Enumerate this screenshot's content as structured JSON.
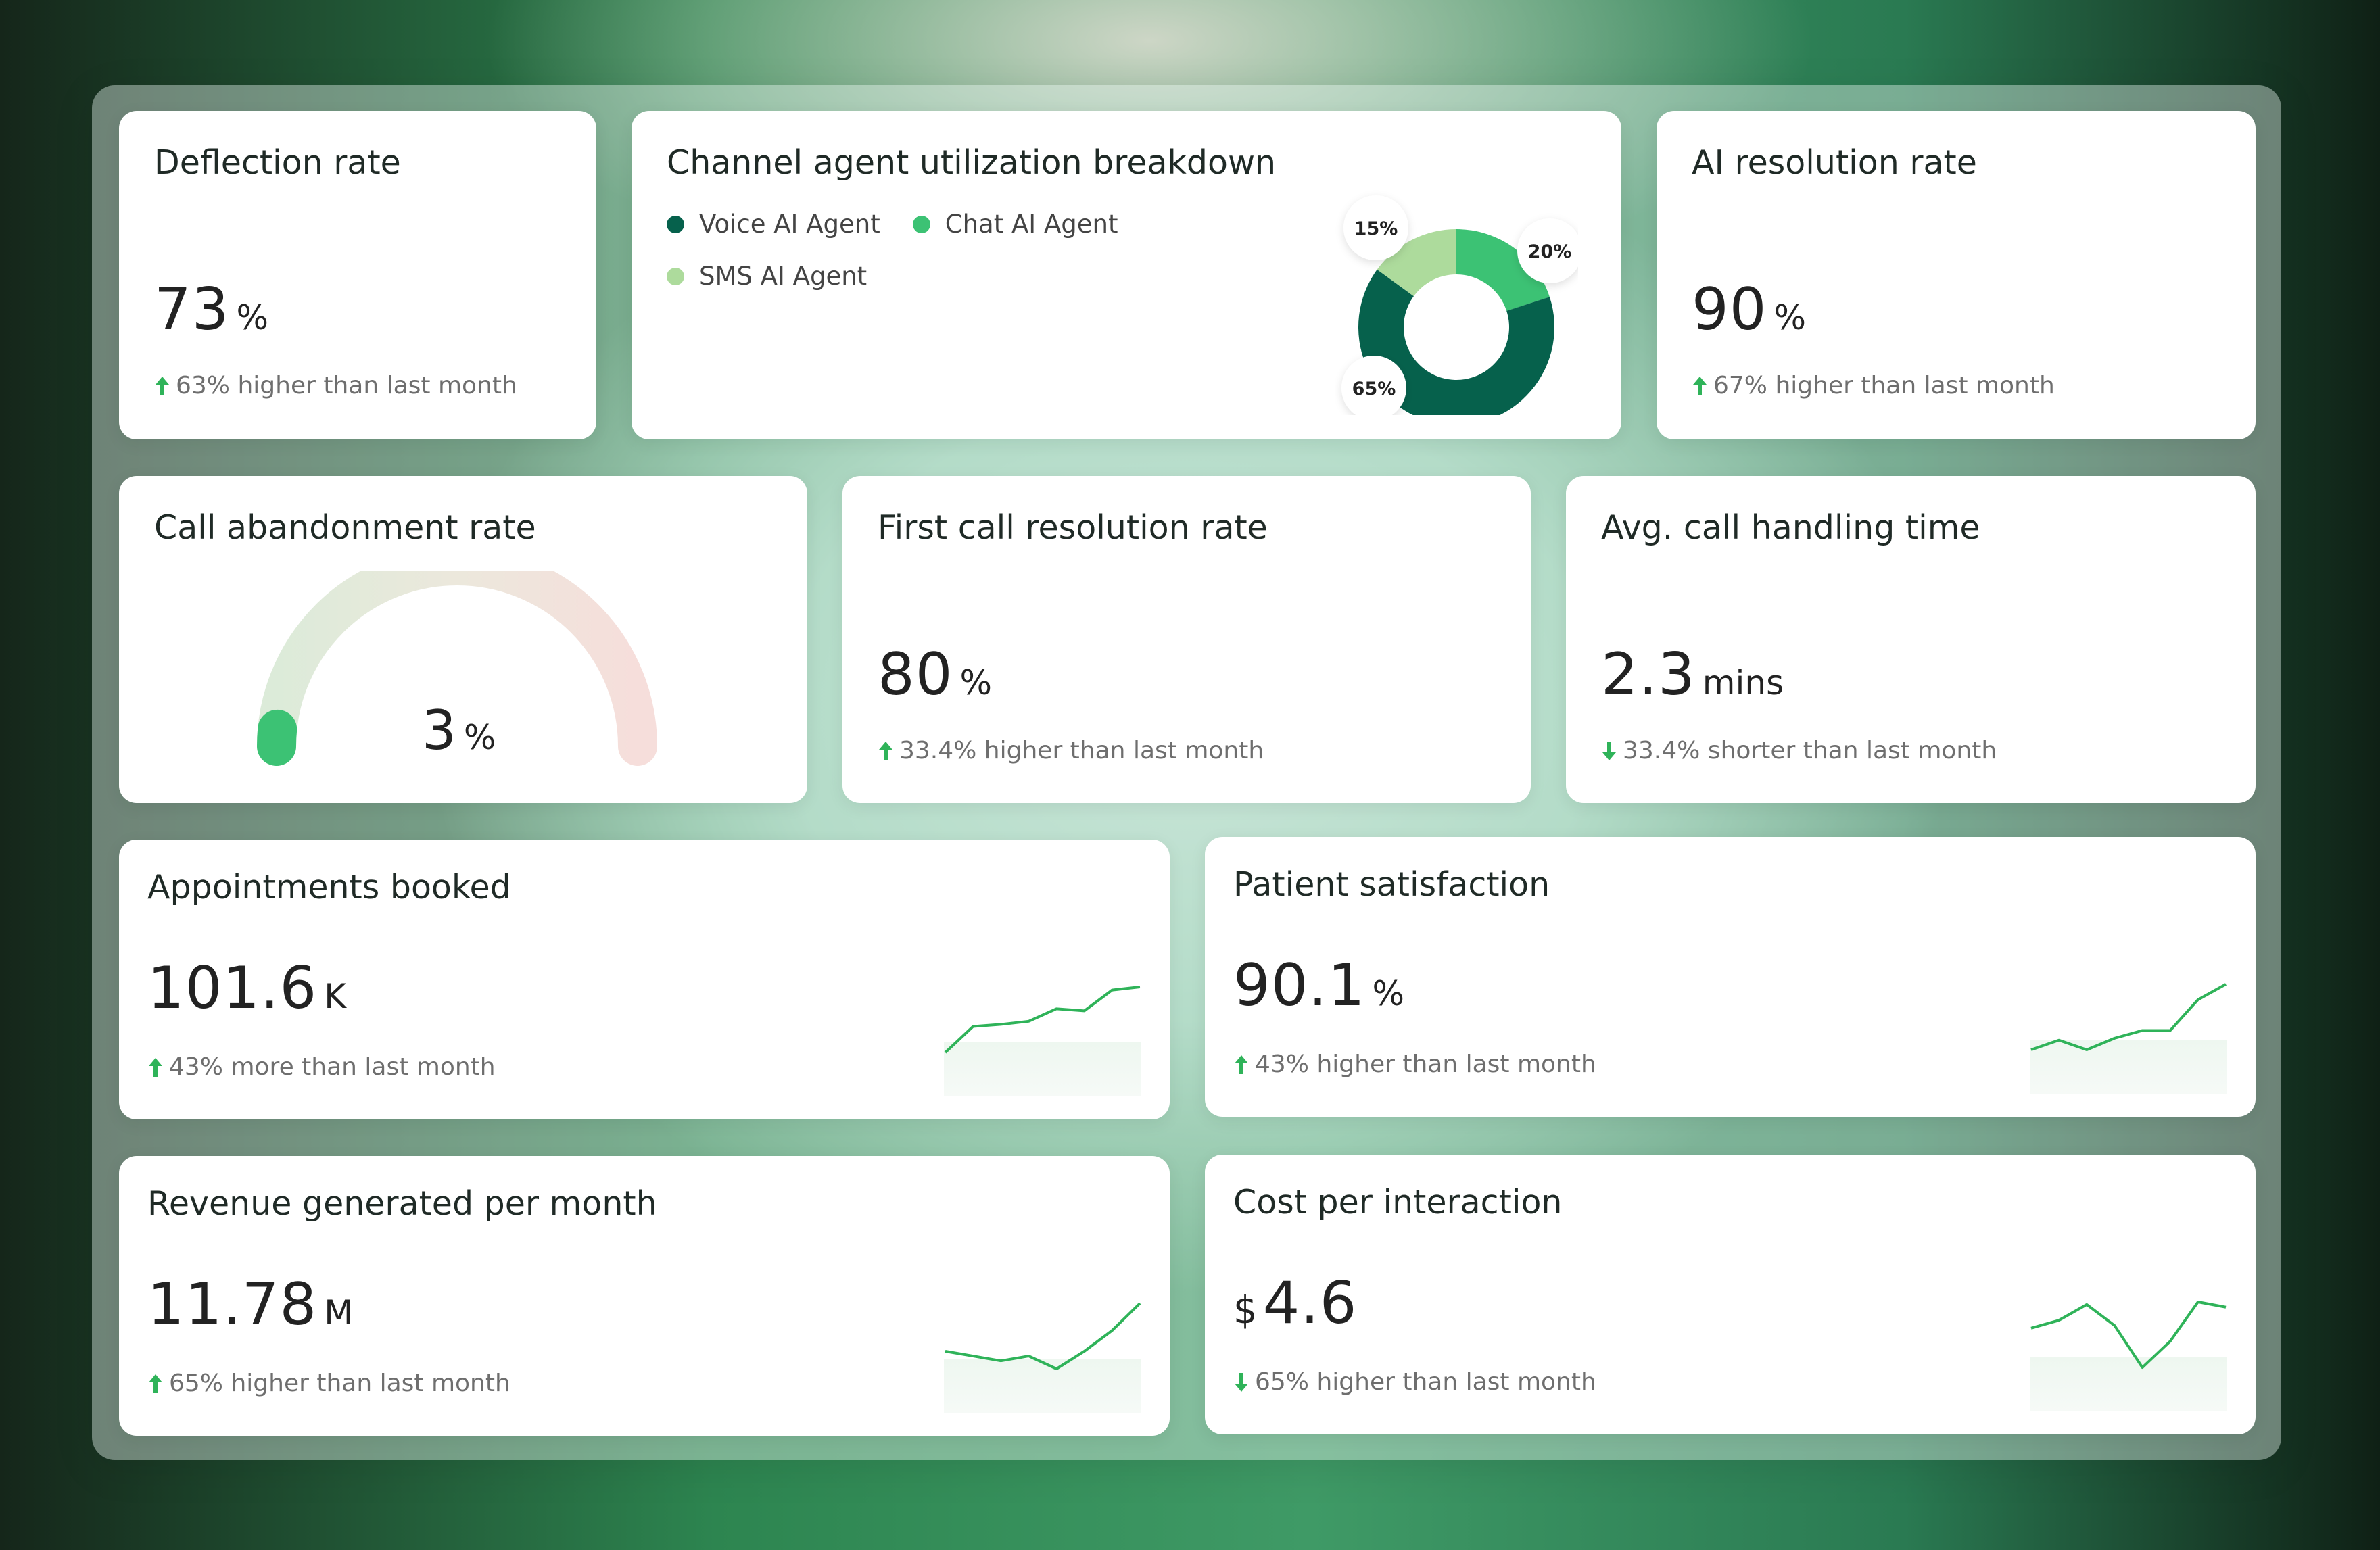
{
  "colors": {
    "dark_green": "#06614c",
    "mid_green": "#3cc274",
    "light_green": "#addb9c",
    "trend_green": "#2fb359"
  },
  "cards": {
    "deflection": {
      "title": "Deflection rate",
      "value": "73",
      "unit": "%",
      "trend_icon": "arrow-up-icon",
      "trend": "63% higher than last month"
    },
    "channel": {
      "title": "Channel agent utilization breakdown",
      "legend": [
        "Voice AI Agent",
        "Chat AI Agent",
        "SMS AI Agent"
      ]
    },
    "ai_resolution": {
      "title": "AI resolution rate",
      "value": "90",
      "unit": "%",
      "trend_icon": "arrow-up-icon",
      "trend": "67% higher than last month"
    },
    "abandonment": {
      "title": "Call abandonment rate",
      "value": "3",
      "unit": "%",
      "gauge_fraction": 0.03
    },
    "first_call": {
      "title": "First call resolution rate",
      "value": "80",
      "unit": "%",
      "trend_icon": "arrow-up-icon",
      "trend": "33.4% higher than last month"
    },
    "handling": {
      "title": "Avg. call handling time",
      "value": "2.3",
      "unit": "mins",
      "trend_icon": "arrow-down-icon",
      "trend": "33.4% shorter than last month"
    },
    "appointments": {
      "title": "Appointments booked",
      "value": "101.6",
      "unit": "K",
      "trend_icon": "arrow-up-icon",
      "trend": "43% more than last month"
    },
    "satisfaction": {
      "title": "Patient satisfaction",
      "value": "90.1",
      "unit": "%",
      "trend_icon": "arrow-up-icon",
      "trend": "43% higher than last month"
    },
    "revenue": {
      "title": "Revenue generated per month",
      "value": "11.78",
      "unit": "M",
      "trend_icon": "arrow-up-icon",
      "trend": "65% higher than last month"
    },
    "cost": {
      "title": "Cost per interaction",
      "prefix": "$",
      "value": "4.6",
      "trend_icon": "arrow-down-icon",
      "trend": "65% higher than last month"
    }
  },
  "chart_data": [
    {
      "type": "pie",
      "title": "Channel agent utilization breakdown",
      "categories": [
        "Voice AI Agent",
        "Chat AI Agent",
        "SMS AI Agent"
      ],
      "values": [
        65,
        20,
        15
      ],
      "labels": [
        "65%",
        "20%",
        "15%"
      ],
      "legend": "top-left"
    },
    {
      "type": "line",
      "name": "appointments-sparkline",
      "values": [
        1,
        3.5,
        3.7,
        4,
        5.2,
        5,
        7,
        7.3
      ]
    },
    {
      "type": "line",
      "name": "satisfaction-sparkline",
      "values": [
        2,
        2.5,
        2,
        2.6,
        3,
        3,
        4.6,
        5.4
      ]
    },
    {
      "type": "line",
      "name": "revenue-sparkline",
      "values": [
        3,
        2.7,
        2.4,
        2.7,
        1.9,
        3,
        4.3,
        6
      ]
    },
    {
      "type": "line",
      "name": "cost-sparkline",
      "values": [
        3,
        3.3,
        3.9,
        3.1,
        1.5,
        2.5,
        4,
        3.8
      ]
    }
  ]
}
